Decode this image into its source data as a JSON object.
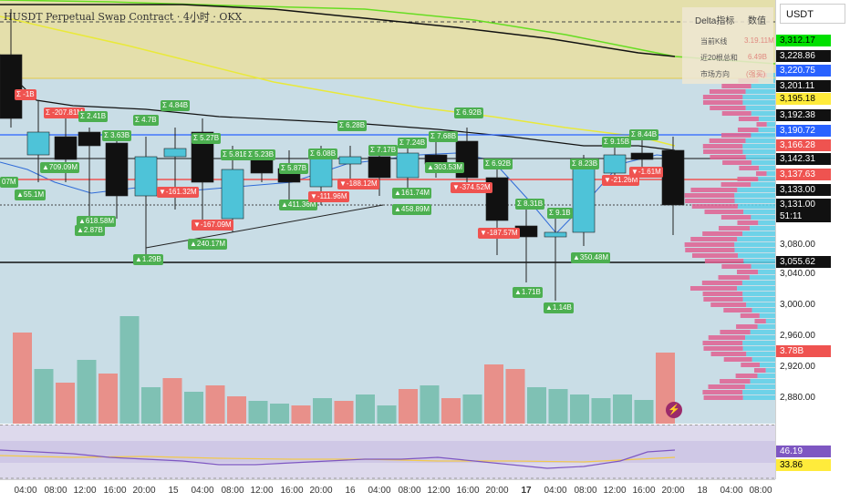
{
  "chart": {
    "title": "HUSDT Perpetual Swap Contract · 4小时 · OKX",
    "symbol_box": "USDT",
    "info_panel": {
      "header_left": "Delta指标",
      "header_right": "数值",
      "rows": [
        {
          "label": "当前K线",
          "value": "3.19.11M"
        },
        {
          "label": "近20根总和",
          "value": "6.49B"
        },
        {
          "label": "市场方向",
          "value": "(强买)"
        }
      ]
    },
    "bubbles": [
      {
        "text": "Σ -1B",
        "tone": "r"
      },
      {
        "text": "Σ -207.81M",
        "tone": "r"
      },
      {
        "text": "Σ 2.41B",
        "tone": "g"
      },
      {
        "text": "Σ 4.84B",
        "tone": "g"
      },
      {
        "text": "Σ 4.7B",
        "tone": "g"
      },
      {
        "text": "Σ 3.63B",
        "tone": "g"
      },
      {
        "text": "Σ 5.27B",
        "tone": "g"
      },
      {
        "text": "Σ 6.28B",
        "tone": "g"
      },
      {
        "text": "Σ 6.92B",
        "tone": "g"
      },
      {
        "text": "Σ 8.44B",
        "tone": "g"
      },
      {
        "text": "Σ 9.15B",
        "tone": "g"
      },
      {
        "text": "Σ 5.81B",
        "tone": "g"
      },
      {
        "text": "Σ 5.23B",
        "tone": "g"
      },
      {
        "text": "Σ 5.87B",
        "tone": "g"
      },
      {
        "text": "Σ 6.08B",
        "tone": "g"
      },
      {
        "text": "Σ 7.17B",
        "tone": "g"
      },
      {
        "text": "Σ 7.24B",
        "tone": "g"
      },
      {
        "text": "Σ 7.68B",
        "tone": "g"
      },
      {
        "text": "Σ 6.92B",
        "tone": "g"
      },
      {
        "text": "Σ 8.31B",
        "tone": "g"
      },
      {
        "text": "Σ 9.1B",
        "tone": "g"
      },
      {
        "text": "Σ 8.23B",
        "tone": "g"
      },
      {
        "text": "▲709.09M",
        "tone": "g"
      },
      {
        "text": "▲55.1M",
        "tone": "g"
      },
      {
        "text": "▲618.58M",
        "tone": "g"
      },
      {
        "text": "▲2.87B",
        "tone": "g"
      },
      {
        "text": "▼-161.32M",
        "tone": "r"
      },
      {
        "text": "▼-167.09M",
        "tone": "r"
      },
      {
        "text": "▲240.17M",
        "tone": "g"
      },
      {
        "text": "▲1.29B",
        "tone": "g"
      },
      {
        "text": "▲411.36M",
        "tone": "g"
      },
      {
        "text": "▼-111.96M",
        "tone": "r"
      },
      {
        "text": "▼-188.12M",
        "tone": "r"
      },
      {
        "text": "▲161.74M",
        "tone": "g"
      },
      {
        "text": "▲458.89M",
        "tone": "g"
      },
      {
        "text": "▲303.53M",
        "tone": "g"
      },
      {
        "text": "▼-374.52M",
        "tone": "r"
      },
      {
        "text": "▼-187.57M",
        "tone": "r"
      },
      {
        "text": "▲1.71B",
        "tone": "g"
      },
      {
        "text": "▲1.14B",
        "tone": "g"
      },
      {
        "text": "▲350.48M",
        "tone": "g"
      },
      {
        "text": "▼-21.26M",
        "tone": "r"
      },
      {
        "text": "▼-1.61M",
        "tone": "r"
      },
      {
        "text": "07M",
        "tone": "g"
      }
    ],
    "colors": {
      "up": "#4ec3d8",
      "down": "#111111",
      "vol_up": "#7fc1b4",
      "vol_down": "#e8908a",
      "bubble_green": "#4caf50",
      "bubble_red": "#ef5350"
    }
  },
  "price_axis": {
    "labels": [
      {
        "text": "3,312.17",
        "bg": "#00e000",
        "fg": "#000"
      },
      {
        "text": "3,228.86",
        "bg": "#111111",
        "fg": "#fff"
      },
      {
        "text": "3,220.75",
        "bg": "#2962ff",
        "fg": "#fff"
      },
      {
        "text": "3,201.11",
        "bg": "#111111",
        "fg": "#fff"
      },
      {
        "text": "3,195.18",
        "bg": "#ffeb3b",
        "fg": "#000"
      },
      {
        "text": "3,192.38",
        "bg": "#111111",
        "fg": "#fff"
      },
      {
        "text": "3,190.72",
        "bg": "#2962ff",
        "fg": "#fff"
      },
      {
        "text": "3,166.28",
        "bg": "#ef5350",
        "fg": "#fff"
      },
      {
        "text": "3,142.31",
        "bg": "#111111",
        "fg": "#fff"
      },
      {
        "text": "3,137.63",
        "bg": "#ef5350",
        "fg": "#fff"
      },
      {
        "text": "3,133.00",
        "bg": "#111111",
        "fg": "#fff"
      },
      {
        "text": "3,131.00",
        "bg": "#111111",
        "fg": "#fff"
      },
      {
        "text": "51:11",
        "bg": "#111111",
        "fg": "#fff"
      },
      {
        "text": "3,080.00",
        "bg": "",
        "fg": "#222"
      },
      {
        "text": "3,055.62",
        "bg": "#111111",
        "fg": "#fff"
      },
      {
        "text": "3,040.00",
        "bg": "",
        "fg": "#222"
      },
      {
        "text": "3,000.00",
        "bg": "",
        "fg": "#222"
      },
      {
        "text": "2,960.00",
        "bg": "",
        "fg": "#222"
      },
      {
        "text": "3.78B",
        "bg": "#ef5350",
        "fg": "#fff"
      },
      {
        "text": "2,920.00",
        "bg": "",
        "fg": "#222"
      },
      {
        "text": "2,880.00",
        "bg": "",
        "fg": "#222"
      },
      {
        "text": "46.19",
        "bg": "#7e57c2",
        "fg": "#fff"
      },
      {
        "text": "33.86",
        "bg": "#ffeb3b",
        "fg": "#000"
      }
    ]
  },
  "time_axis": {
    "labels": [
      {
        "text": "04:00",
        "bold": false
      },
      {
        "text": "08:00",
        "bold": false
      },
      {
        "text": "12:00",
        "bold": false
      },
      {
        "text": "16:00",
        "bold": false
      },
      {
        "text": "20:00",
        "bold": false
      },
      {
        "text": "15",
        "bold": false
      },
      {
        "text": "04:00",
        "bold": false
      },
      {
        "text": "08:00",
        "bold": false
      },
      {
        "text": "12:00",
        "bold": false
      },
      {
        "text": "16:00",
        "bold": false
      },
      {
        "text": "20:00",
        "bold": false
      },
      {
        "text": "16",
        "bold": false
      },
      {
        "text": "04:00",
        "bold": false
      },
      {
        "text": "08:00",
        "bold": false
      },
      {
        "text": "12:00",
        "bold": false
      },
      {
        "text": "16:00",
        "bold": false
      },
      {
        "text": "20:00",
        "bold": false
      },
      {
        "text": "17",
        "bold": true
      },
      {
        "text": "04:00",
        "bold": false
      },
      {
        "text": "08:00",
        "bold": false
      },
      {
        "text": "12:00",
        "bold": false
      },
      {
        "text": "16:00",
        "bold": false
      },
      {
        "text": "20:00",
        "bold": false
      },
      {
        "text": "18",
        "bold": false
      },
      {
        "text": "04:00",
        "bold": false
      },
      {
        "text": "08:00",
        "bold": false
      }
    ]
  }
}
